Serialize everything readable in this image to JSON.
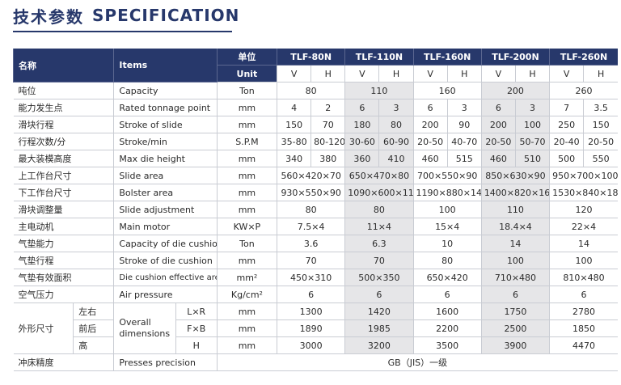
{
  "title": {
    "cn": "技术参数",
    "en": "SPECIFICATION"
  },
  "header": {
    "name_cn": "名称",
    "name_en": "Items",
    "unit_cn": "单位",
    "unit_en": "Unit",
    "models": [
      "TLF-80N",
      "TLF-110N",
      "TLF-160N",
      "TLF-200N",
      "TLF-260N"
    ],
    "v": "V",
    "h": "H"
  },
  "rows": [
    {
      "cn": "吨位",
      "en": "Capacity",
      "unit": "Ton",
      "vals": [
        "80",
        "110",
        "160",
        "200",
        "260"
      ]
    },
    {
      "cn": "能力发生点",
      "en": "Rated tonnage point",
      "unit": "mm",
      "vals": [
        "4",
        "2",
        "6",
        "3",
        "6",
        "3",
        "6",
        "3",
        "7",
        "3.5"
      ]
    },
    {
      "cn": "滑块行程",
      "en": "Stroke of slide",
      "unit": "mm",
      "vals": [
        "150",
        "70",
        "180",
        "80",
        "200",
        "90",
        "200",
        "100",
        "250",
        "150"
      ]
    },
    {
      "cn": "行程次数/分",
      "en": "Stroke/min",
      "unit": "S.P.M",
      "vals": [
        "35-80",
        "80-120",
        "30-60",
        "60-90",
        "20-50",
        "40-70",
        "20-50",
        "50-70",
        "20-40",
        "20-50"
      ]
    },
    {
      "cn": "最大装模高度",
      "en": "Max die height",
      "unit": "mm",
      "vals": [
        "340",
        "380",
        "360",
        "410",
        "460",
        "515",
        "460",
        "510",
        "500",
        "550"
      ]
    },
    {
      "cn": "上工作台尺寸",
      "en": "Slide area",
      "unit": "mm",
      "vals": [
        "560×420×70",
        "650×470×80",
        "700×550×90",
        "850×630×90",
        "950×700×100"
      ]
    },
    {
      "cn": "下工作台尺寸",
      "en": "Bolster area",
      "unit": "mm",
      "vals": [
        "930×550×90",
        "1090×600×110",
        "1190×880×140",
        "1400×820×160",
        "1530×840×180"
      ]
    },
    {
      "cn": "滑块调整量",
      "en": "Slide adjustment",
      "unit": "mm",
      "vals": [
        "80",
        "80",
        "100",
        "110",
        "120"
      ]
    },
    {
      "cn": "主电动机",
      "en": "Main motor",
      "unit": "KW×P",
      "vals": [
        "7.5×4",
        "11×4",
        "15×4",
        "18.4×4",
        "22×4"
      ]
    },
    {
      "cn": "气垫能力",
      "en": "Capacity of die cushion",
      "unit": "Ton",
      "vals": [
        "3.6",
        "6.3",
        "10",
        "14",
        "14"
      ]
    },
    {
      "cn": "气垫行程",
      "en": "Stroke  of die cushion",
      "unit": "mm",
      "vals": [
        "70",
        "70",
        "80",
        "100",
        "100"
      ]
    },
    {
      "cn": "气垫有效面积",
      "en": "Die cushion effective area",
      "unit": "mm²",
      "vals": [
        "450×310",
        "500×350",
        "650×420",
        "710×480",
        "810×480"
      ]
    },
    {
      "cn": "空气压力",
      "en": "Air pressure",
      "unit": "Kg/cm²",
      "vals": [
        "6",
        "6",
        "6",
        "6",
        "6"
      ]
    }
  ],
  "dims": {
    "cn": "外形尺寸",
    "en": "Overall dimensions",
    "sub": [
      {
        "cn": "左右",
        "axis": "L×R",
        "unit": "mm",
        "vals": [
          "1300",
          "1420",
          "1600",
          "1750",
          "2780"
        ]
      },
      {
        "cn": "前后",
        "axis": "F×B",
        "unit": "mm",
        "vals": [
          "1890",
          "1985",
          "2200",
          "2500",
          "1850"
        ]
      },
      {
        "cn": "高",
        "axis": "H",
        "unit": "mm",
        "vals": [
          "3000",
          "3200",
          "3500",
          "3900",
          "4470"
        ]
      }
    ]
  },
  "precision": {
    "cn": "冲床精度",
    "en": "Presses precision",
    "val": "GB（JIS）一级"
  },
  "colors": {
    "header_bg": "#27386b",
    "shade": "#e6e6e8"
  }
}
